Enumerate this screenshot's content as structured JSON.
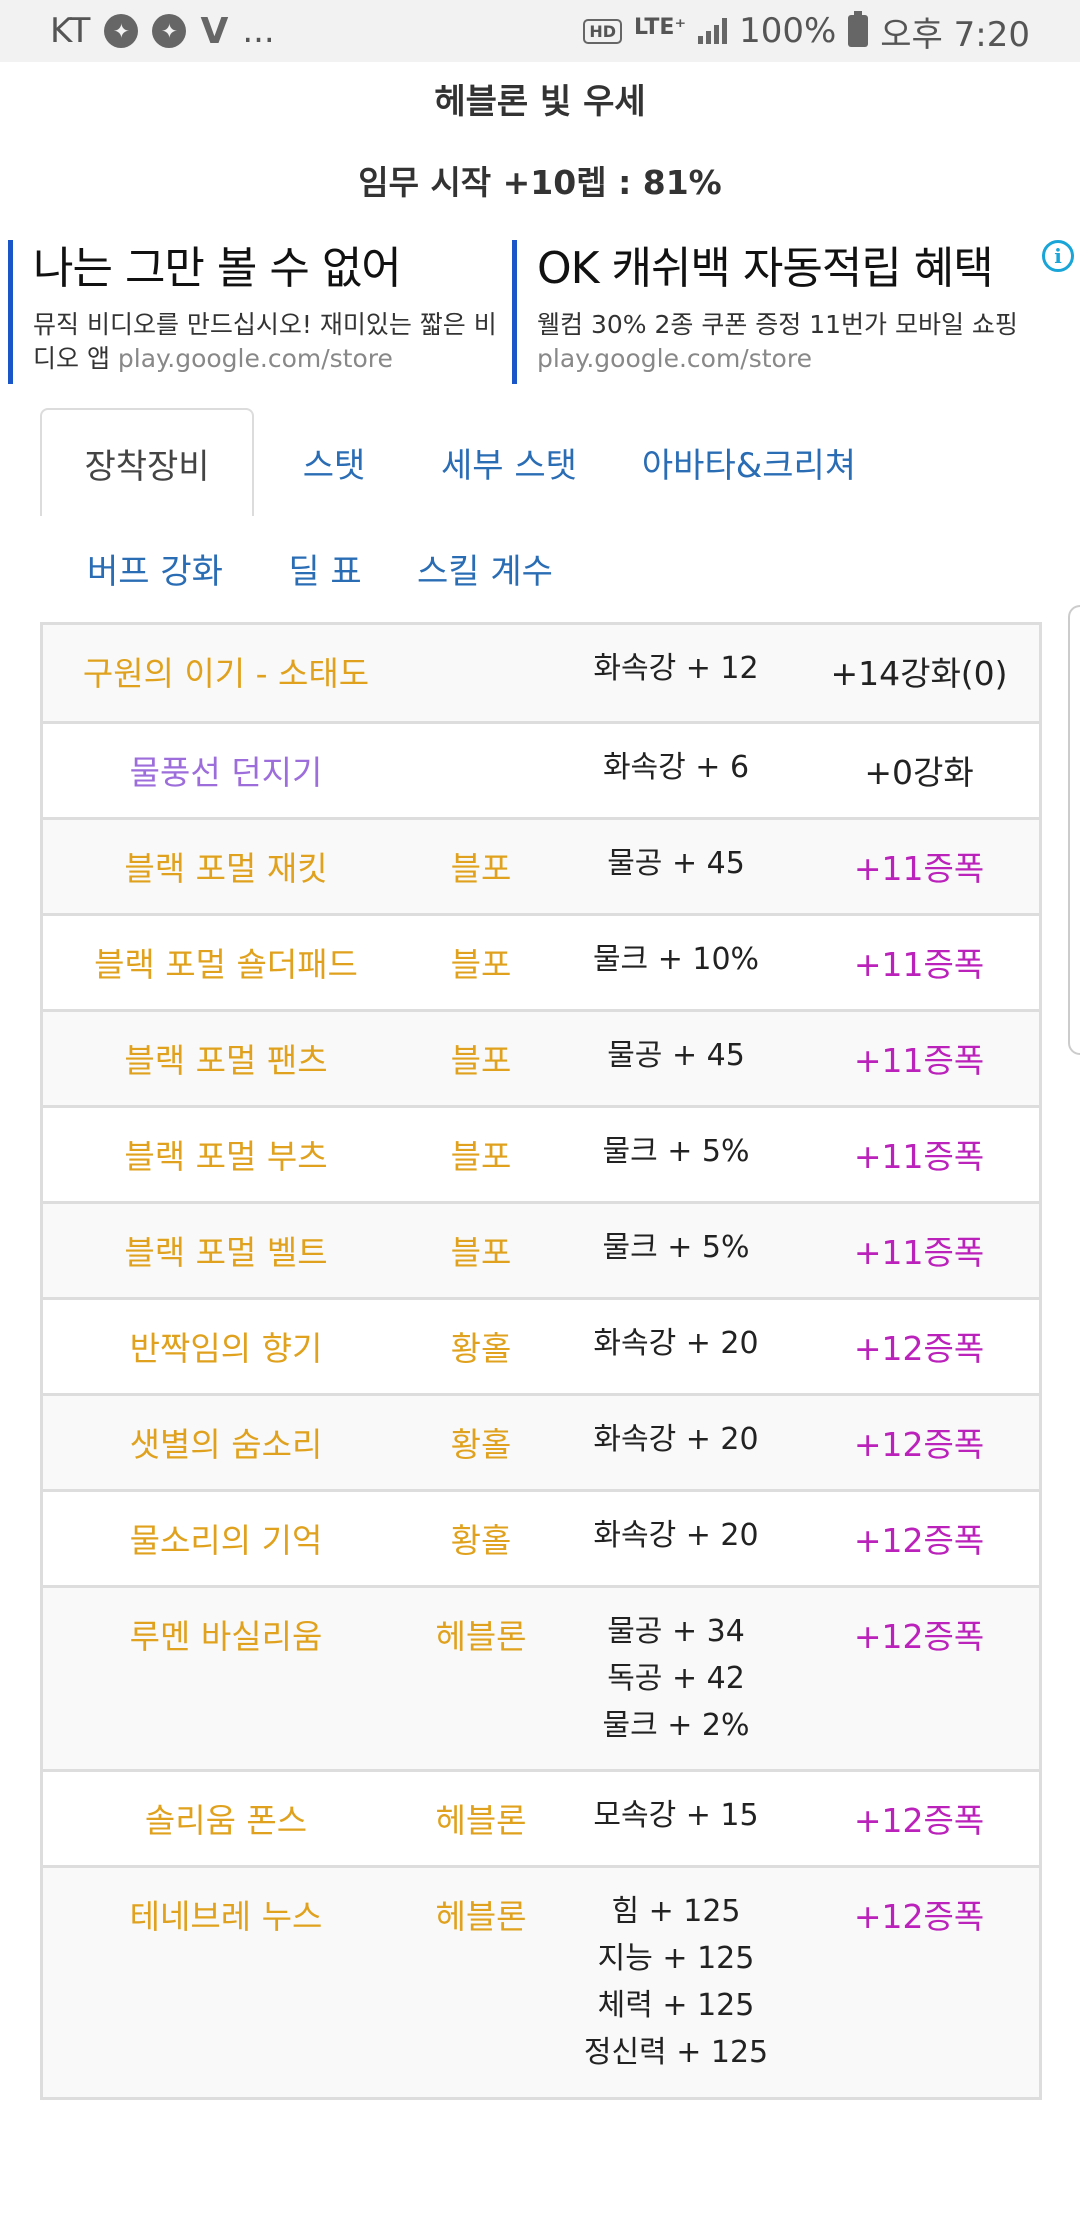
{
  "status_bar": {
    "carrier": "KT",
    "more": "...",
    "hd": "HD",
    "network": "LTE⁺",
    "battery": "100%",
    "time": "오후 7:20"
  },
  "header": {
    "title": "헤블론 빛 우세",
    "subtitle": "임무 시작 +10렙 : 81%"
  },
  "ads": [
    {
      "headline": "나는 그만 볼 수 없어",
      "desc": "뮤직 비디오를 만드십시오! 재미있는 짧은 비디오 앱",
      "url": "play.google.com/store"
    },
    {
      "headline": "OK 캐쉬백 자동적립 혜택",
      "desc": "웰컴 30% 2종 쿠폰 증정 11번가 모바일 쇼핑",
      "url": "play.google.com/store"
    }
  ],
  "ad_info_icon": "i",
  "tabs": {
    "row1": [
      "장착장비",
      "스탯",
      "세부 스탯",
      "아바타&크리쳐"
    ],
    "row2": [
      "버프 강화",
      "딜 표",
      "스킬 계수"
    ],
    "active": "장착장비"
  },
  "equipment": [
    {
      "name": "구원의 이기 - 소태도",
      "set": "",
      "stats": [
        "화속강 + 12"
      ],
      "upgrade": "+14강화(0)",
      "name_color": "gold",
      "upgrade_color": "dark"
    },
    {
      "name": "물풍선 던지기",
      "set": "",
      "stats": [
        "화속강 + 6"
      ],
      "upgrade": "+0강화",
      "name_color": "purple",
      "upgrade_color": "dark"
    },
    {
      "name": "블랙 포멀 재킷",
      "set": "블포",
      "stats": [
        "물공 + 45"
      ],
      "upgrade": "+11증폭",
      "name_color": "gold",
      "upgrade_color": "magenta"
    },
    {
      "name": "블랙 포멀 숄더패드",
      "set": "블포",
      "stats": [
        "물크 + 10%"
      ],
      "upgrade": "+11증폭",
      "name_color": "gold",
      "upgrade_color": "magenta"
    },
    {
      "name": "블랙 포멀 팬츠",
      "set": "블포",
      "stats": [
        "물공 + 45"
      ],
      "upgrade": "+11증폭",
      "name_color": "gold",
      "upgrade_color": "magenta"
    },
    {
      "name": "블랙 포멀 부츠",
      "set": "블포",
      "stats": [
        "물크 + 5%"
      ],
      "upgrade": "+11증폭",
      "name_color": "gold",
      "upgrade_color": "magenta"
    },
    {
      "name": "블랙 포멀 벨트",
      "set": "블포",
      "stats": [
        "물크 + 5%"
      ],
      "upgrade": "+11증폭",
      "name_color": "gold",
      "upgrade_color": "magenta"
    },
    {
      "name": "반짝임의 향기",
      "set": "황홀",
      "stats": [
        "화속강 + 20"
      ],
      "upgrade": "+12증폭",
      "name_color": "gold",
      "upgrade_color": "magenta"
    },
    {
      "name": "샛별의 숨소리",
      "set": "황홀",
      "stats": [
        "화속강 + 20"
      ],
      "upgrade": "+12증폭",
      "name_color": "gold",
      "upgrade_color": "magenta"
    },
    {
      "name": "물소리의 기억",
      "set": "황홀",
      "stats": [
        "화속강 + 20"
      ],
      "upgrade": "+12증폭",
      "name_color": "gold",
      "upgrade_color": "magenta"
    },
    {
      "name": "루멘 바실리움",
      "set": "헤블론",
      "stats": [
        "물공 + 34",
        "독공 + 42",
        "물크 + 2%"
      ],
      "upgrade": "+12증폭",
      "name_color": "gold",
      "upgrade_color": "magenta"
    },
    {
      "name": "솔리움 폰스",
      "set": "헤블론",
      "stats": [
        "모속강 + 15"
      ],
      "upgrade": "+12증폭",
      "name_color": "gold",
      "upgrade_color": "magenta"
    },
    {
      "name": "테네브레 누스",
      "set": "헤블론",
      "stats": [
        "힘 + 125",
        "지능 + 125",
        "체력 + 125",
        "정신력 + 125"
      ],
      "upgrade": "+12증폭",
      "name_color": "gold",
      "upgrade_color": "magenta"
    }
  ]
}
